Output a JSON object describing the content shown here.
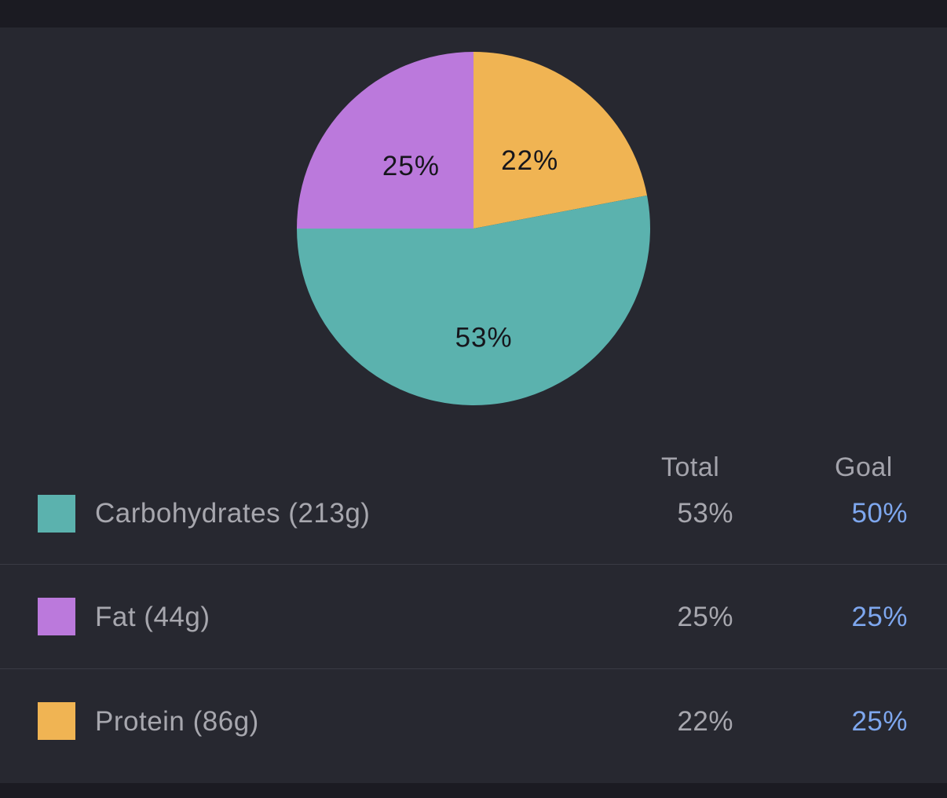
{
  "chart_data": {
    "type": "pie",
    "slices": [
      {
        "label": "Protein (86g)",
        "value": 22,
        "display": "22%",
        "color": "#f0b453"
      },
      {
        "label": "Carbohydrates (213g)",
        "value": 53,
        "display": "53%",
        "color": "#5bb2ae"
      },
      {
        "label": "Fat (44g)",
        "value": 25,
        "display": "25%",
        "color": "#bb79dc"
      }
    ]
  },
  "table": {
    "headers": {
      "total": "Total",
      "goal": "Goal"
    },
    "rows": [
      {
        "label": "Carbohydrates (213g)",
        "total": "53%",
        "goal": "50%",
        "color": "#5bb2ae"
      },
      {
        "label": "Fat (44g)",
        "total": "25%",
        "goal": "25%",
        "color": "#bb79dc"
      },
      {
        "label": "Protein (86g)",
        "total": "22%",
        "goal": "25%",
        "color": "#f0b453"
      }
    ]
  }
}
